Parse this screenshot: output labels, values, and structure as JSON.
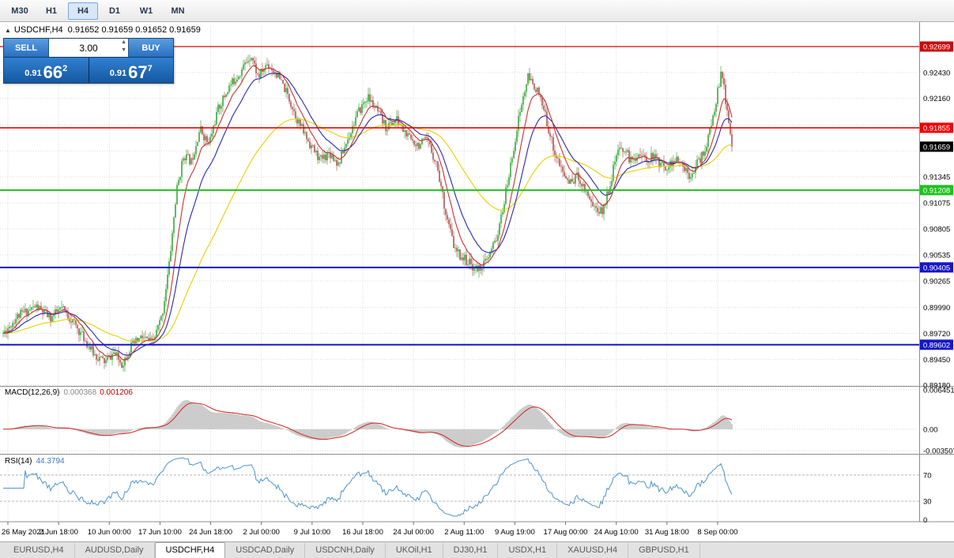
{
  "toolbar": {
    "timeframes": [
      {
        "label": "M30",
        "active": false
      },
      {
        "label": "H1",
        "active": false
      },
      {
        "label": "H4",
        "active": true
      },
      {
        "label": "D1",
        "active": false
      },
      {
        "label": "W1",
        "active": false
      },
      {
        "label": "MN",
        "active": false
      }
    ]
  },
  "header": {
    "collapse_icon": "▲",
    "symbol_period": "USDCHF,H4",
    "ohlc": "0.91652 0.91659 0.91652 0.91659"
  },
  "trade_panel": {
    "sell_label": "SELL",
    "buy_label": "BUY",
    "volume": "3.00",
    "spin_up_icon": "▲",
    "spin_down_icon": "▼",
    "sell_price": {
      "base": "0.91",
      "big": "66",
      "sup": "2"
    },
    "buy_price": {
      "base": "0.91",
      "big": "67",
      "sup": "7"
    }
  },
  "price_scale": {
    "ticks": [
      {
        "label": "0.92430",
        "price": 0.9243
      },
      {
        "label": "0.92160",
        "price": 0.9216
      },
      {
        "label": "0.91345",
        "price": 0.91345
      },
      {
        "label": "0.91075",
        "price": 0.91075
      },
      {
        "label": "0.90805",
        "price": 0.90805
      },
      {
        "label": "0.90535",
        "price": 0.90535
      },
      {
        "label": "0.90265",
        "price": 0.90265
      },
      {
        "label": "0.89990",
        "price": 0.8999
      },
      {
        "label": "0.89720",
        "price": 0.8972
      },
      {
        "label": "0.89450",
        "price": 0.8945
      },
      {
        "label": "0.89180",
        "price": 0.8918
      }
    ]
  },
  "hlines": [
    {
      "label": "0.92699",
      "price": 0.92699,
      "color": "#cc0a0a",
      "width": 1.3
    },
    {
      "label": "0.91855",
      "price": 0.91855,
      "color": "#f00000",
      "width": 1.6
    },
    {
      "label": "0.91208",
      "price": 0.91208,
      "color": "#1ec11e",
      "width": 2
    },
    {
      "label": "0.90405",
      "price": 0.90405,
      "color": "#1616c8",
      "width": 2
    },
    {
      "label": "0.89602",
      "price": 0.89602,
      "color": "#1616c8",
      "width": 2
    }
  ],
  "current_price_badge": {
    "label": "0.91659",
    "price": 0.91659,
    "bg": "#000000"
  },
  "time_labels": [
    "26 May 2021",
    "2 Jun 18:00",
    "10 Jun 00:00",
    "17 Jun 10:00",
    "24 Jun 18:00",
    "2 Jul 00:00",
    "9 Jul 10:00",
    "16 Jul 18:00",
    "24 Jul 00:00",
    "2 Aug 11:00",
    "9 Aug 19:00",
    "17 Aug 00:00",
    "24 Aug 10:00",
    "31 Aug 18:00",
    "8 Sep 00:00"
  ],
  "macd_panel": {
    "name": "MACD(12,26,9)",
    "value_main": "0.000368",
    "value_signal": "0.001206",
    "scale": [
      {
        "label": "0.006451",
        "v": 0.006451
      },
      {
        "label": "0.00",
        "v": 0
      },
      {
        "label": "-0.003507",
        "v": -0.003507
      }
    ]
  },
  "rsi_panel": {
    "name": "RSI(14)",
    "value": "44.3794",
    "levels": [
      {
        "label": "70",
        "v": 70
      },
      {
        "label": "30",
        "v": 30
      },
      {
        "label": "0",
        "v": 0
      }
    ]
  },
  "tabs": [
    {
      "label": "EURUSD,H4",
      "active": false
    },
    {
      "label": "AUDUSD,Daily",
      "active": false
    },
    {
      "label": "USDCHF,H4",
      "active": true
    },
    {
      "label": "USDCAD,Daily",
      "active": false
    },
    {
      "label": "USDCNH,Daily",
      "active": false
    },
    {
      "label": "UKOil,H1",
      "active": false
    },
    {
      "label": "DJ30,H1",
      "active": false
    },
    {
      "label": "USDX,H1",
      "active": false
    },
    {
      "label": "XAUUSD,H4",
      "active": false
    },
    {
      "label": "GBPUSD,H1",
      "active": false
    }
  ],
  "chart_data": {
    "type": "candlestick",
    "symbol": "USDCHF",
    "period": "H4",
    "price_axis": {
      "top": 0.92912,
      "bottom": 0.89182
    },
    "grid_prices": [
      0.927,
      0.9243,
      0.9216,
      0.9189,
      0.91615,
      0.91345,
      0.91075,
      0.90805,
      0.90535,
      0.90265,
      0.8999,
      0.8972,
      0.8945,
      0.8918
    ],
    "candle_count": 462,
    "price_path": [
      [
        0.0,
        0.8972
      ],
      [
        0.02,
        0.899
      ],
      [
        0.045,
        0.9
      ],
      [
        0.065,
        0.8988
      ],
      [
        0.08,
        0.8998
      ],
      [
        0.095,
        0.8985
      ],
      [
        0.11,
        0.8968
      ],
      [
        0.125,
        0.895
      ],
      [
        0.14,
        0.8942
      ],
      [
        0.152,
        0.8952
      ],
      [
        0.163,
        0.894
      ],
      [
        0.175,
        0.8958
      ],
      [
        0.19,
        0.8968
      ],
      [
        0.205,
        0.8962
      ],
      [
        0.218,
        0.899
      ],
      [
        0.228,
        0.9045
      ],
      [
        0.238,
        0.912
      ],
      [
        0.248,
        0.9158
      ],
      [
        0.258,
        0.915
      ],
      [
        0.27,
        0.9185
      ],
      [
        0.282,
        0.9168
      ],
      [
        0.295,
        0.9205
      ],
      [
        0.31,
        0.9228
      ],
      [
        0.325,
        0.9243
      ],
      [
        0.34,
        0.9262
      ],
      [
        0.35,
        0.9238
      ],
      [
        0.362,
        0.9252
      ],
      [
        0.375,
        0.9242
      ],
      [
        0.39,
        0.922
      ],
      [
        0.405,
        0.9192
      ],
      [
        0.42,
        0.917
      ],
      [
        0.435,
        0.9152
      ],
      [
        0.448,
        0.916
      ],
      [
        0.46,
        0.9148
      ],
      [
        0.472,
        0.9172
      ],
      [
        0.485,
        0.9198
      ],
      [
        0.5,
        0.9218
      ],
      [
        0.512,
        0.9204
      ],
      [
        0.525,
        0.9186
      ],
      [
        0.54,
        0.9194
      ],
      [
        0.555,
        0.9176
      ],
      [
        0.57,
        0.9168
      ],
      [
        0.582,
        0.9172
      ],
      [
        0.595,
        0.9148
      ],
      [
        0.608,
        0.9095
      ],
      [
        0.62,
        0.9058
      ],
      [
        0.635,
        0.9048
      ],
      [
        0.65,
        0.9038
      ],
      [
        0.665,
        0.9048
      ],
      [
        0.68,
        0.9078
      ],
      [
        0.695,
        0.914
      ],
      [
        0.708,
        0.9198
      ],
      [
        0.72,
        0.9238
      ],
      [
        0.732,
        0.9226
      ],
      [
        0.744,
        0.9198
      ],
      [
        0.756,
        0.9162
      ],
      [
        0.768,
        0.9138
      ],
      [
        0.778,
        0.9128
      ],
      [
        0.788,
        0.9136
      ],
      [
        0.8,
        0.912
      ],
      [
        0.812,
        0.9102
      ],
      [
        0.822,
        0.9098
      ],
      [
        0.832,
        0.9125
      ],
      [
        0.842,
        0.9158
      ],
      [
        0.852,
        0.9165
      ],
      [
        0.862,
        0.915
      ],
      [
        0.872,
        0.916
      ],
      [
        0.882,
        0.9152
      ],
      [
        0.892,
        0.9156
      ],
      [
        0.902,
        0.9148
      ],
      [
        0.912,
        0.9145
      ],
      [
        0.922,
        0.9152
      ],
      [
        0.932,
        0.9146
      ],
      [
        0.942,
        0.9137
      ],
      [
        0.952,
        0.9148
      ],
      [
        0.962,
        0.916
      ],
      [
        0.972,
        0.9188
      ],
      [
        0.98,
        0.9222
      ],
      [
        0.986,
        0.9243
      ],
      [
        0.993,
        0.9205
      ],
      [
        1.0,
        0.9166
      ]
    ],
    "noise": {
      "close": 0.0005,
      "wick": 0.0007,
      "seed": 11
    },
    "moving_averages": [
      {
        "period": 10,
        "color": "#c83232"
      },
      {
        "period": 22,
        "color": "#2828b4"
      },
      {
        "period": 72,
        "color": "#e8d000"
      }
    ],
    "macd": {
      "fast": 12,
      "slow": 26,
      "signal": 9,
      "scale_top": 0.006451,
      "scale_bottom": -0.003507,
      "hist_color": "#c0c0c0",
      "signal_color": "#d42020"
    },
    "rsi": {
      "period": 14,
      "color": "#4f94cd",
      "level_high": 70,
      "level_low": 30
    },
    "colors": {
      "up": "#1f9a1f",
      "down": "#a04038",
      "grid": "#d6d6d6"
    }
  }
}
